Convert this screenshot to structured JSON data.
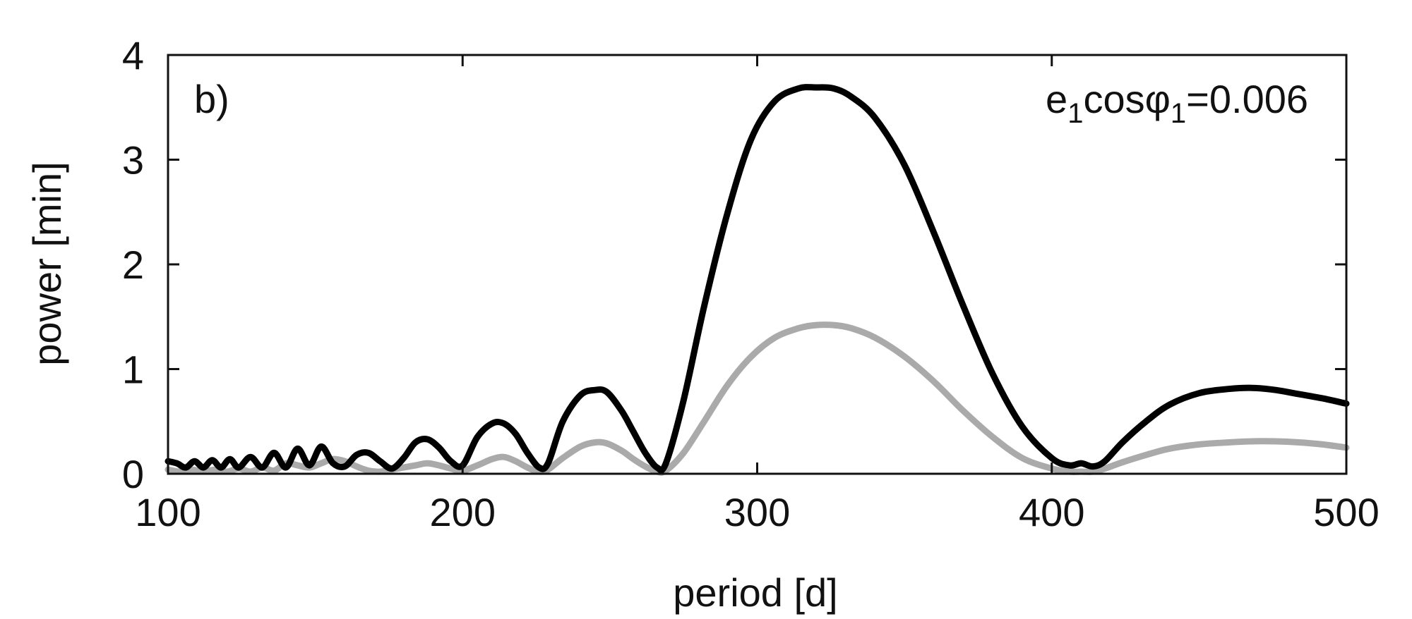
{
  "chart_data": {
    "type": "line",
    "panel_label": "b)",
    "annotation": {
      "e": "e",
      "e_sub": "1",
      "cos": "cos",
      "phi": "φ",
      "phi_sub": "1",
      "value": "=0.006"
    },
    "xlabel": "period [d]",
    "ylabel": "power [min]",
    "xlim": [
      100,
      500
    ],
    "ylim": [
      0,
      4
    ],
    "xticks": [
      100,
      200,
      300,
      400,
      500
    ],
    "yticks": [
      0,
      1,
      2,
      3,
      4
    ],
    "grid": false,
    "colors": {
      "black_series": "#000000",
      "gray_series": "#aaaaaa",
      "axes": "#111111"
    },
    "series": [
      {
        "color": "#000000",
        "x": [
          100,
          103,
          106,
          109,
          112,
          115,
          118,
          121,
          124,
          128,
          132,
          136,
          140,
          144,
          148,
          152,
          156,
          160,
          164,
          168,
          172,
          176,
          180,
          184,
          188,
          192,
          196,
          200,
          205,
          210,
          214,
          218,
          222,
          226,
          229,
          234,
          240,
          245,
          249,
          254,
          258,
          262,
          266,
          269,
          275,
          282,
          290,
          298,
          306,
          314,
          320,
          326,
          332,
          340,
          350,
          360,
          370,
          380,
          390,
          400,
          406,
          410,
          414,
          418,
          424,
          432,
          440,
          450,
          460,
          468,
          476,
          484,
          492,
          500
        ],
        "y": [
          0.12,
          0.1,
          0.06,
          0.12,
          0.06,
          0.13,
          0.06,
          0.14,
          0.06,
          0.16,
          0.06,
          0.2,
          0.06,
          0.24,
          0.08,
          0.26,
          0.1,
          0.07,
          0.18,
          0.2,
          0.12,
          0.05,
          0.15,
          0.3,
          0.33,
          0.25,
          0.12,
          0.08,
          0.35,
          0.48,
          0.48,
          0.38,
          0.2,
          0.06,
          0.1,
          0.5,
          0.75,
          0.8,
          0.78,
          0.6,
          0.4,
          0.2,
          0.06,
          0.1,
          0.7,
          1.6,
          2.5,
          3.2,
          3.56,
          3.68,
          3.69,
          3.68,
          3.6,
          3.4,
          2.95,
          2.3,
          1.6,
          0.95,
          0.45,
          0.15,
          0.08,
          0.1,
          0.07,
          0.12,
          0.3,
          0.5,
          0.66,
          0.77,
          0.81,
          0.82,
          0.8,
          0.76,
          0.72,
          0.67
        ]
      },
      {
        "color": "#aaaaaa",
        "x": [
          100,
          104,
          108,
          112,
          116,
          120,
          124,
          128,
          132,
          136,
          140,
          144,
          148,
          152,
          156,
          160,
          164,
          168,
          172,
          176,
          180,
          184,
          188,
          192,
          196,
          200,
          205,
          210,
          214,
          218,
          222,
          226,
          229,
          234,
          240,
          245,
          249,
          254,
          258,
          262,
          266,
          269,
          275,
          282,
          290,
          298,
          306,
          314,
          320,
          326,
          332,
          340,
          350,
          360,
          370,
          380,
          390,
          400,
          406,
          410,
          414,
          418,
          424,
          432,
          440,
          450,
          460,
          468,
          476,
          484,
          492,
          500
        ],
        "y": [
          0.04,
          0.02,
          0.04,
          0.02,
          0.04,
          0.02,
          0.05,
          0.02,
          0.06,
          0.03,
          0.1,
          0.08,
          0.06,
          0.1,
          0.14,
          0.12,
          0.07,
          0.03,
          0.02,
          0.04,
          0.06,
          0.08,
          0.1,
          0.08,
          0.05,
          0.03,
          0.08,
          0.14,
          0.16,
          0.12,
          0.06,
          0.02,
          0.04,
          0.15,
          0.26,
          0.3,
          0.29,
          0.22,
          0.14,
          0.07,
          0.02,
          0.03,
          0.2,
          0.5,
          0.85,
          1.12,
          1.3,
          1.39,
          1.42,
          1.42,
          1.39,
          1.3,
          1.12,
          0.88,
          0.6,
          0.35,
          0.15,
          0.05,
          0.02,
          0.02,
          0.02,
          0.05,
          0.11,
          0.18,
          0.24,
          0.28,
          0.3,
          0.31,
          0.31,
          0.3,
          0.28,
          0.25
        ]
      }
    ]
  }
}
